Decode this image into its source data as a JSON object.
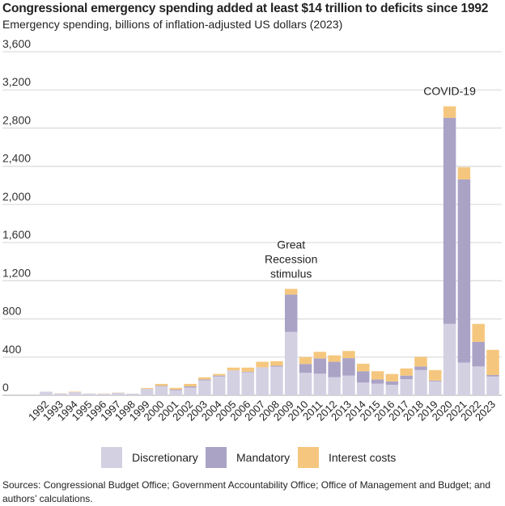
{
  "title": "Congressional emergency spending added at least $14 trillion to deficits since 1992",
  "subtitle": "Emergency spending, billions of inflation-adjusted US dollars (2023)",
  "sources": "Sources: Congressional Budget Office; Government Accountability Office; Office of Management and Budget; and authors’ calculations.",
  "colors": {
    "Discretionary": "#d3d0e2",
    "Mandatory": "#aaa3c6",
    "Interest costs": "#f5c77e",
    "grid": "#dddddd"
  },
  "chart_data": {
    "type": "bar",
    "stacked": true,
    "title": "Congressional emergency spending added at least $14 trillion to deficits since 1992",
    "ylabel": "Emergency spending, billions of inflation-adjusted US dollars (2023)",
    "ylim": [
      0,
      3600
    ],
    "yticks": [
      0,
      400,
      800,
      1200,
      1600,
      2000,
      2400,
      2800,
      3200,
      3600
    ],
    "ytick_labels": [
      "0",
      "400",
      "800",
      "1,200",
      "1,600",
      "2,000",
      "2,400",
      "2,800",
      "3,200",
      "3,600"
    ],
    "grid": true,
    "legend_position": "bottom",
    "categories": [
      "1992",
      "1993",
      "1994",
      "1995",
      "1996",
      "1997",
      "1998",
      "1999",
      "2000",
      "2001",
      "2002",
      "2003",
      "2004",
      "2005",
      "2006",
      "2007",
      "2008",
      "2009",
      "2010",
      "2011",
      "2012",
      "2013",
      "2014",
      "2015",
      "2016",
      "2017",
      "2018",
      "2019",
      "2020",
      "2021",
      "2022",
      "2023"
    ],
    "series": [
      {
        "name": "Discretionary",
        "values": [
          38,
          18,
          33,
          17,
          16,
          27,
          16,
          67,
          93,
          52,
          81,
          157,
          197,
          261,
          241,
          293,
          300,
          665,
          235,
          226,
          189,
          206,
          133,
          122,
          110,
          168,
          264,
          145,
          748,
          342,
          302,
          197
        ]
      },
      {
        "name": "Mandatory",
        "values": [
          0,
          0,
          0,
          0,
          0,
          0,
          0,
          0,
          6,
          8,
          12,
          9,
          9,
          0,
          5,
          0,
          10,
          390,
          93,
          160,
          162,
          183,
          119,
          43,
          35,
          38,
          38,
          9,
          2160,
          1920,
          258,
          15
        ]
      },
      {
        "name": "Interest costs",
        "values": [
          0,
          2,
          5,
          1,
          2,
          2,
          1,
          9,
          20,
          18,
          26,
          22,
          17,
          29,
          44,
          58,
          47,
          60,
          72,
          69,
          67,
          75,
          79,
          87,
          78,
          75,
          101,
          110,
          120,
          128,
          188,
          264
        ]
      }
    ],
    "annotations": [
      {
        "text": [
          "Great",
          "Recession",
          "stimulus"
        ],
        "category": "2009"
      },
      {
        "text": [
          "COVID-19"
        ],
        "category": "2020"
      }
    ]
  }
}
